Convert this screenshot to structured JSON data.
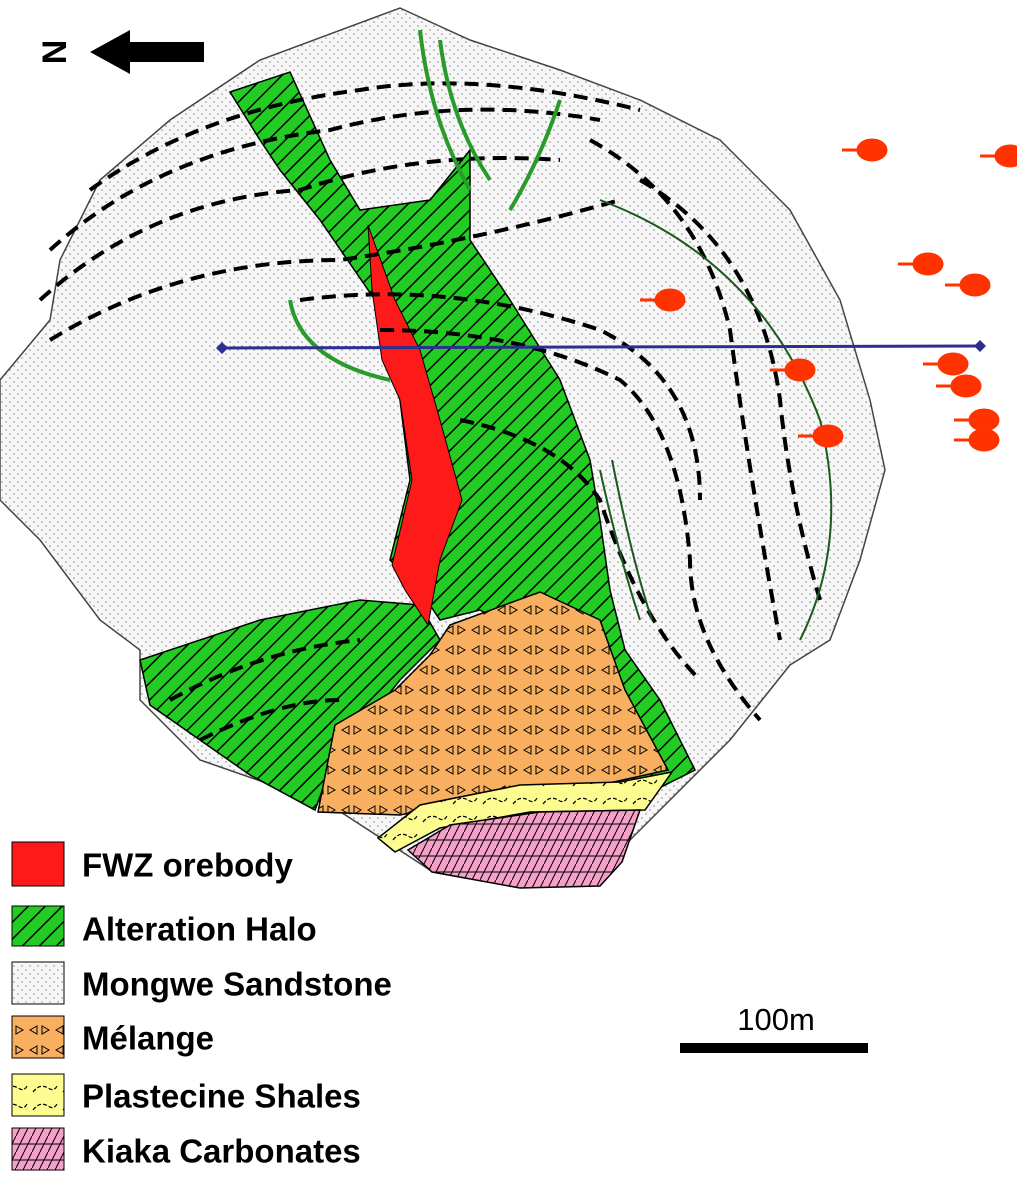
{
  "north_label": "N",
  "legend": [
    {
      "label": "FWZ orebody"
    },
    {
      "label": "Alteration Halo"
    },
    {
      "label": "Mongwe Sandstone"
    },
    {
      "label": "Mélange"
    },
    {
      "label": "Plastecine Shales"
    },
    {
      "label": "Kiaka Carbonates"
    }
  ],
  "scale_bar": {
    "label": "100m"
  }
}
